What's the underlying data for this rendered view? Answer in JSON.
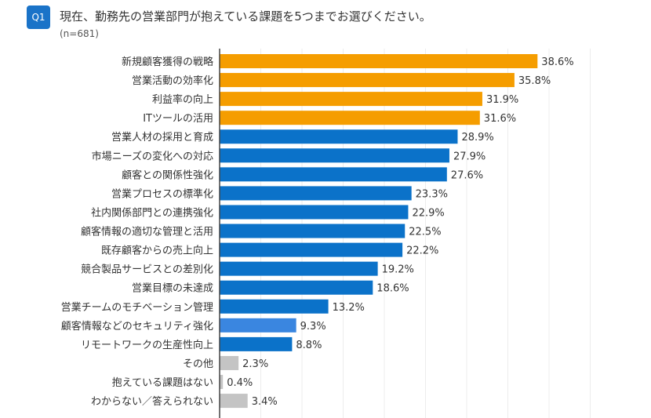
{
  "header": {
    "badge": "Q1",
    "title": "現在、勤務先の営業部門が抱えている課題を5つまでお選びください。",
    "sample": "(n=681)"
  },
  "chart_data": {
    "type": "bar",
    "orientation": "horizontal",
    "title": "現在、勤務先の営業部門が抱えている課題を5つまでお選びください。",
    "subtitle": "(n=681)",
    "xlim": [
      0,
      45
    ],
    "grid": true,
    "grid_step": 5,
    "categories": [
      "新規顧客獲得の戦略",
      "営業活動の効率化",
      "利益率の向上",
      "ITツールの活用",
      "営業人材の採用と育成",
      "市場ニーズの変化への対応",
      "顧客との関係性強化",
      "営業プロセスの標準化",
      "社内関係部門との連携強化",
      "顧客情報の適切な管理と活用",
      "既存顧客からの売上向上",
      "競合製品サービスとの差別化",
      "営業目標の未達成",
      "営業チームのモチベーション管理",
      "顧客情報などのセキュリティ強化",
      "リモートワークの生産性向上",
      "その他",
      "抱えている課題はない",
      "わからない／答えられない"
    ],
    "values": [
      38.6,
      35.8,
      31.9,
      31.6,
      28.9,
      27.9,
      27.6,
      23.3,
      22.9,
      22.5,
      22.2,
      19.2,
      18.6,
      13.2,
      9.3,
      8.8,
      2.3,
      0.4,
      3.4
    ],
    "labels": [
      "38.6%",
      "35.8%",
      "31.9%",
      "31.6%",
      "28.9%",
      "27.9%",
      "27.6%",
      "23.3%",
      "22.9%",
      "22.5%",
      "22.2%",
      "19.2%",
      "18.6%",
      "13.2%",
      "9.3%",
      "8.8%",
      "2.3%",
      "0.4%",
      "3.4%"
    ],
    "colors": [
      "#f59d00",
      "#f59d00",
      "#f59d00",
      "#f59d00",
      "#0b72c9",
      "#0b72c9",
      "#0b72c9",
      "#0b72c9",
      "#0b72c9",
      "#0b72c9",
      "#0b72c9",
      "#0b72c9",
      "#0b72c9",
      "#0b72c9",
      "#3a86e0",
      "#0b72c9",
      "#c4c4c4",
      "#c4c4c4",
      "#c4c4c4"
    ]
  }
}
